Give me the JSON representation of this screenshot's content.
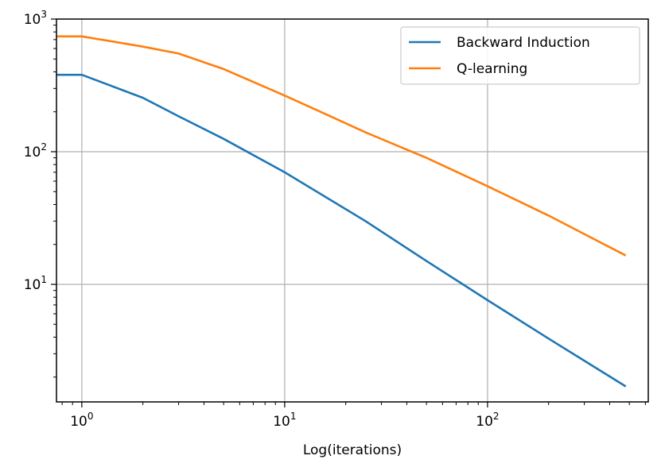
{
  "chart_data": {
    "type": "line",
    "title": "",
    "xlabel": "Log(iterations)",
    "ylabel": "",
    "xscale": "log",
    "yscale": "log",
    "xlim": [
      0.75,
      620
    ],
    "ylim": [
      1.3,
      1000
    ],
    "grid": true,
    "legend_position": "top-right",
    "x_ticks": [
      {
        "value": 1,
        "base": "10",
        "exp": "0"
      },
      {
        "value": 10,
        "base": "10",
        "exp": "1"
      },
      {
        "value": 100,
        "base": "10",
        "exp": "2"
      }
    ],
    "y_ticks": [
      {
        "value": 10,
        "base": "10",
        "exp": "1"
      },
      {
        "value": 100,
        "base": "10",
        "exp": "2"
      },
      {
        "value": 1000,
        "base": "10",
        "exp": "3"
      }
    ],
    "series": [
      {
        "name": "Backward Induction",
        "color": "#1f77b4",
        "x": [
          0.75,
          1,
          2,
          3,
          5,
          10,
          25,
          50,
          100,
          200,
          480
        ],
        "y": [
          380,
          380,
          255,
          185,
          125,
          70,
          30,
          15,
          7.6,
          3.9,
          1.7
        ]
      },
      {
        "name": "Q-learning",
        "color": "#ff7f0e",
        "x": [
          0.75,
          1,
          2,
          3,
          5,
          10,
          15,
          25,
          50,
          100,
          200,
          480
        ],
        "y": [
          740,
          740,
          620,
          550,
          420,
          265,
          200,
          140,
          90,
          55,
          33,
          16.5
        ]
      }
    ]
  }
}
